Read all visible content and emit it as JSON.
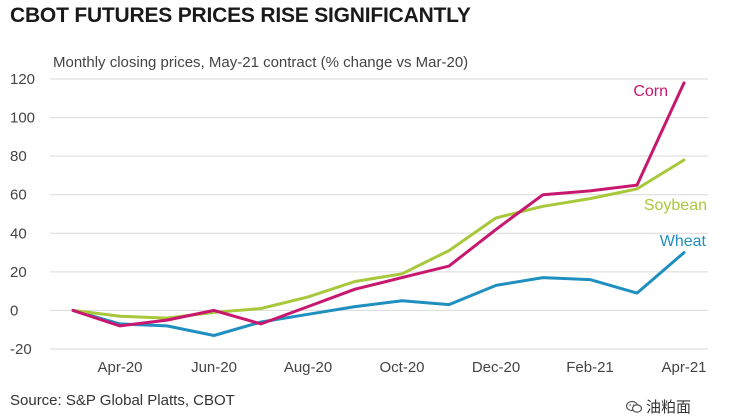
{
  "header": {
    "title": "CBOT FUTURES PRICES RISE SIGNIFICANTLY",
    "subtitle": "Monthly closing prices, May-21 contract (% change vs Mar-20)"
  },
  "footer": {
    "source": "Source: S&P Global Platts, CBOT",
    "watermark": "油粕面"
  },
  "colors": {
    "corn": "#c8176e",
    "soybean": "#a8c83c",
    "wheat": "#1f8fbf",
    "grid": "#d9d9d9"
  },
  "chart_data": {
    "type": "line",
    "title": "CBOT FUTURES PRICES RISE SIGNIFICANTLY",
    "subtitle": "Monthly closing prices, May-21 contract (% change vs Mar-20)",
    "x": [
      "Mar-20",
      "Apr-20",
      "May-20",
      "Jun-20",
      "Jul-20",
      "Aug-20",
      "Sep-20",
      "Oct-20",
      "Nov-20",
      "Dec-20",
      "Jan-21",
      "Feb-21",
      "Mar-21",
      "Apr-21"
    ],
    "x_tick_labels": [
      "Apr-20",
      "Jun-20",
      "Aug-20",
      "Oct-20",
      "Dec-20",
      "Feb-21",
      "Apr-21"
    ],
    "y_ticks": [
      -20,
      0,
      20,
      40,
      60,
      80,
      100,
      120
    ],
    "ylim": [
      -20,
      120
    ],
    "grid": "horizontal",
    "series": [
      {
        "name": "Corn",
        "values": [
          0,
          -8,
          -5,
          0,
          -7,
          2,
          11,
          17,
          23,
          42,
          60,
          62,
          65,
          118
        ]
      },
      {
        "name": "Soybean",
        "values": [
          0,
          -3,
          -4,
          -1,
          1,
          7,
          15,
          19,
          31,
          48,
          54,
          58,
          63,
          78
        ]
      },
      {
        "name": "Wheat",
        "values": [
          0,
          -7,
          -8,
          -13,
          -6,
          -2,
          2,
          5,
          3,
          13,
          17,
          16,
          9,
          30
        ]
      }
    ]
  }
}
